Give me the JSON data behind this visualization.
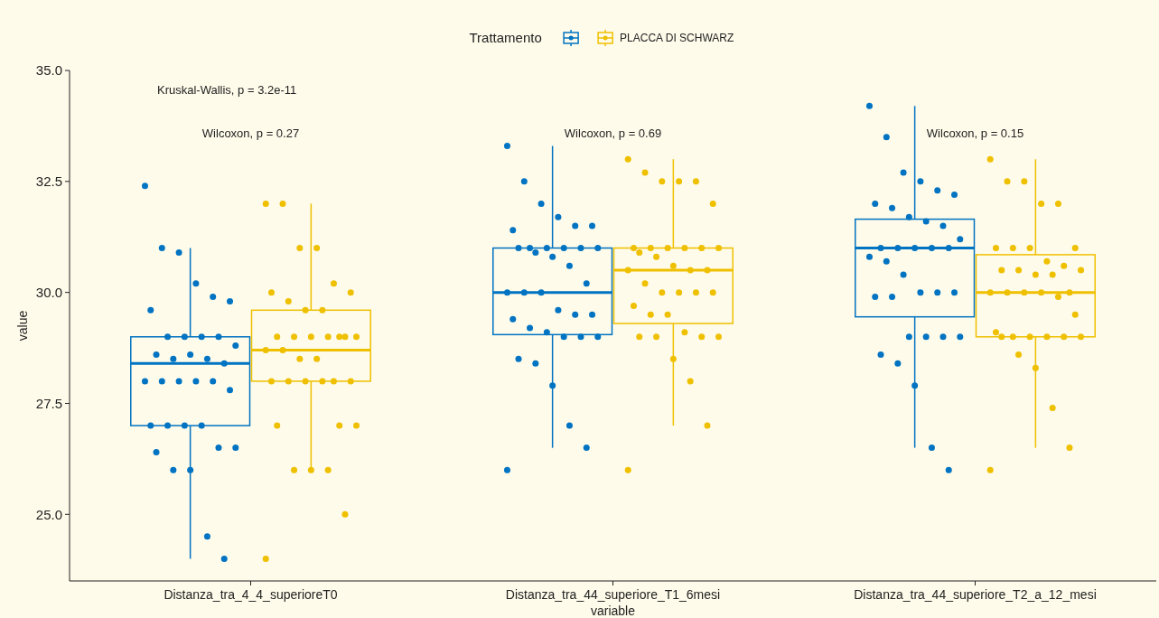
{
  "chart_data": {
    "type": "box",
    "categories": [
      "Distanza_tra_4_4_superioreT0",
      "Distanza_tra_44_superiore_T1_6mesi",
      "Distanza_tra_44_superiore_T2_a_12_mesi"
    ],
    "xlabel": "variable",
    "ylabel": "value",
    "legend_title": "Trattamento",
    "legend": "top",
    "ylim": [
      23.5,
      35
    ],
    "yticks": [
      {
        "value": 25,
        "label": "25.0"
      },
      {
        "value": 27.5,
        "label": "27.5"
      },
      {
        "value": 30,
        "label": "30.0"
      },
      {
        "value": 32.5,
        "label": "32.5"
      },
      {
        "value": 35,
        "label": "35.0"
      }
    ],
    "annotations": [
      "Kruskal-Wallis, p = 3.2e-11",
      "Wilcoxon, p = 0.27",
      "Wilcoxon, p = 0.69",
      "Wilcoxon, p = 0.15"
    ],
    "series": [
      {
        "color": "#0073c2",
        "boxes": [
          {
            "low": 24.0,
            "q1": 27.0,
            "median": 28.4,
            "q3": 29.0,
            "high": 31.0
          },
          {
            "low": 26.5,
            "q1": 29.05,
            "median": 30.0,
            "q3": 31.0,
            "high": 33.3
          },
          {
            "low": 26.5,
            "q1": 29.45,
            "median": 31.0,
            "q3": 31.65,
            "high": 34.2
          }
        ]
      },
      {
        "name": "PLACCA DI SCHWARZ",
        "color": "#efc000",
        "boxes": [
          {
            "low": 26.0,
            "q1": 28.0,
            "median": 28.7,
            "q3": 29.6,
            "high": 32.0
          },
          {
            "low": 27.0,
            "q1": 29.3,
            "median": 30.5,
            "q3": 31.0,
            "high": 33.0
          },
          {
            "low": 26.5,
            "q1": 29.0,
            "median": 30.0,
            "q3": 30.85,
            "high": 33.0
          }
        ]
      },
      {
        "type": "scatter",
        "color": "#0073c2",
        "x": [
          "Distanza_tra_4_4_superioreT0",
          "Distanza_tra_4_4_superioreT0",
          "Distanza_tra_4_4_superioreT0",
          "Distanza_tra_4_4_superioreT0",
          "Distanza_tra_4_4_superioreT0",
          "Distanza_tra_4_4_superioreT0",
          "Distanza_tra_4_4_superioreT0",
          "Distanza_tra_4_4_superioreT0",
          "Distanza_tra_4_4_superioreT0",
          "Distanza_tra_4_4_superioreT0",
          "Distanza_tra_4_4_superioreT0",
          "Distanza_tra_4_4_superioreT0",
          "Distanza_tra_4_4_superioreT0",
          "Distanza_tra_4_4_superioreT0",
          "Distanza_tra_4_4_superioreT0",
          "Distanza_tra_4_4_superioreT0",
          "Distanza_tra_4_4_superioreT0",
          "Distanza_tra_4_4_superioreT0",
          "Distanza_tra_4_4_superioreT0",
          "Distanza_tra_4_4_superioreT0",
          "Distanza_tra_4_4_superioreT0",
          "Distanza_tra_4_4_superioreT0",
          "Distanza_tra_4_4_superioreT0",
          "Distanza_tra_4_4_superioreT0",
          "Distanza_tra_4_4_superioreT0",
          "Distanza_tra_4_4_superioreT0",
          "Distanza_tra_4_4_superioreT0",
          "Distanza_tra_4_4_superioreT0",
          "Distanza_tra_4_4_superioreT0",
          "Distanza_tra_4_4_superioreT0",
          "Distanza_tra_4_4_superioreT0",
          "Distanza_tra_4_4_superioreT0",
          "Distanza_tra_4_4_superioreT0",
          "Distanza_tra_4_4_superioreT0"
        ],
        "values": [
          32.4,
          31.0,
          30.9,
          30.2,
          29.9,
          29.8,
          29.6,
          29.0,
          29.0,
          29.0,
          29.0,
          28.8,
          28.6,
          28.5,
          28.6,
          28.5,
          28.4,
          28.0,
          28.0,
          28.0,
          28.0,
          28.0,
          27.8,
          27.0,
          27.0,
          27.0,
          27.0,
          26.5,
          26.5,
          26.4,
          26.0,
          26.0,
          24.5,
          24.0
        ]
      },
      {
        "type": "scatter",
        "color": "#0073c2",
        "x": [
          "Distanza_tra_44_superiore_T1_6mesi",
          "Distanza_tra_44_superiore_T1_6mesi",
          "Distanza_tra_44_superiore_T1_6mesi",
          "Distanza_tra_44_superiore_T1_6mesi",
          "Distanza_tra_44_superiore_T1_6mesi",
          "Distanza_tra_44_superiore_T1_6mesi",
          "Distanza_tra_44_superiore_T1_6mesi",
          "Distanza_tra_44_superiore_T1_6mesi",
          "Distanza_tra_44_superiore_T1_6mesi",
          "Distanza_tra_44_superiore_T1_6mesi",
          "Distanza_tra_44_superiore_T1_6mesi",
          "Distanza_tra_44_superiore_T1_6mesi",
          "Distanza_tra_44_superiore_T1_6mesi",
          "Distanza_tra_44_superiore_T1_6mesi",
          "Distanza_tra_44_superiore_T1_6mesi",
          "Distanza_tra_44_superiore_T1_6mesi",
          "Distanza_tra_44_superiore_T1_6mesi",
          "Distanza_tra_44_superiore_T1_6mesi",
          "Distanza_tra_44_superiore_T1_6mesi",
          "Distanza_tra_44_superiore_T1_6mesi",
          "Distanza_tra_44_superiore_T1_6mesi",
          "Distanza_tra_44_superiore_T1_6mesi",
          "Distanza_tra_44_superiore_T1_6mesi",
          "Distanza_tra_44_superiore_T1_6mesi",
          "Distanza_tra_44_superiore_T1_6mesi",
          "Distanza_tra_44_superiore_T1_6mesi",
          "Distanza_tra_44_superiore_T1_6mesi",
          "Distanza_tra_44_superiore_T1_6mesi",
          "Distanza_tra_44_superiore_T1_6mesi",
          "Distanza_tra_44_superiore_T1_6mesi",
          "Distanza_tra_44_superiore_T1_6mesi",
          "Distanza_tra_44_superiore_T1_6mesi",
          "Distanza_tra_44_superiore_T1_6mesi",
          "Distanza_tra_44_superiore_T1_6mesi",
          "Distanza_tra_44_superiore_T1_6mesi"
        ],
        "values": [
          33.3,
          32.5,
          32.0,
          31.7,
          31.5,
          31.5,
          31.4,
          31.0,
          31.0,
          31.0,
          31.0,
          31.0,
          31.0,
          30.9,
          30.8,
          30.6,
          30.2,
          30.0,
          30.0,
          30.0,
          29.6,
          29.5,
          29.5,
          29.4,
          29.2,
          29.1,
          29.0,
          29.0,
          29.0,
          28.5,
          28.4,
          27.9,
          27.0,
          26.5,
          26.0
        ]
      },
      {
        "type": "scatter",
        "color": "#0073c2",
        "x": [
          "Distanza_tra_44_superiore_T2_a_12_mesi",
          "Distanza_tra_44_superiore_T2_a_12_mesi",
          "Distanza_tra_44_superiore_T2_a_12_mesi",
          "Distanza_tra_44_superiore_T2_a_12_mesi",
          "Distanza_tra_44_superiore_T2_a_12_mesi",
          "Distanza_tra_44_superiore_T2_a_12_mesi",
          "Distanza_tra_44_superiore_T2_a_12_mesi",
          "Distanza_tra_44_superiore_T2_a_12_mesi",
          "Distanza_tra_44_superiore_T2_a_12_mesi",
          "Distanza_tra_44_superiore_T2_a_12_mesi",
          "Distanza_tra_44_superiore_T2_a_12_mesi",
          "Distanza_tra_44_superiore_T2_a_12_mesi",
          "Distanza_tra_44_superiore_T2_a_12_mesi",
          "Distanza_tra_44_superiore_T2_a_12_mesi",
          "Distanza_tra_44_superiore_T2_a_12_mesi",
          "Distanza_tra_44_superiore_T2_a_12_mesi",
          "Distanza_tra_44_superiore_T2_a_12_mesi",
          "Distanza_tra_44_superiore_T2_a_12_mesi",
          "Distanza_tra_44_superiore_T2_a_12_mesi",
          "Distanza_tra_44_superiore_T2_a_12_mesi",
          "Distanza_tra_44_superiore_T2_a_12_mesi",
          "Distanza_tra_44_superiore_T2_a_12_mesi",
          "Distanza_tra_44_superiore_T2_a_12_mesi",
          "Distanza_tra_44_superiore_T2_a_12_mesi",
          "Distanza_tra_44_superiore_T2_a_12_mesi",
          "Distanza_tra_44_superiore_T2_a_12_mesi",
          "Distanza_tra_44_superiore_T2_a_12_mesi",
          "Distanza_tra_44_superiore_T2_a_12_mesi",
          "Distanza_tra_44_superiore_T2_a_12_mesi",
          "Distanza_tra_44_superiore_T2_a_12_mesi",
          "Distanza_tra_44_superiore_T2_a_12_mesi",
          "Distanza_tra_44_superiore_T2_a_12_mesi",
          "Distanza_tra_44_superiore_T2_a_12_mesi",
          "Distanza_tra_44_superiore_T2_a_12_mesi"
        ],
        "values": [
          34.2,
          33.5,
          32.7,
          32.5,
          32.3,
          32.2,
          32.0,
          31.9,
          31.7,
          31.6,
          31.5,
          31.2,
          31.0,
          31.0,
          31.0,
          31.0,
          31.0,
          30.8,
          30.7,
          30.4,
          30.0,
          30.0,
          30.0,
          29.9,
          29.9,
          29.0,
          29.0,
          29.0,
          29.0,
          28.6,
          28.4,
          27.9,
          26.5,
          26.0
        ]
      },
      {
        "type": "scatter",
        "color": "#efc000",
        "x": [
          "Distanza_tra_4_4_superioreT0",
          "Distanza_tra_4_4_superioreT0",
          "Distanza_tra_4_4_superioreT0",
          "Distanza_tra_4_4_superioreT0",
          "Distanza_tra_4_4_superioreT0",
          "Distanza_tra_4_4_superioreT0",
          "Distanza_tra_4_4_superioreT0",
          "Distanza_tra_4_4_superioreT0",
          "Distanza_tra_4_4_superioreT0",
          "Distanza_tra_4_4_superioreT0",
          "Distanza_tra_4_4_superioreT0",
          "Distanza_tra_4_4_superioreT0",
          "Distanza_tra_4_4_superioreT0",
          "Distanza_tra_4_4_superioreT0",
          "Distanza_tra_4_4_superioreT0",
          "Distanza_tra_4_4_superioreT0",
          "Distanza_tra_4_4_superioreT0",
          "Distanza_tra_4_4_superioreT0",
          "Distanza_tra_4_4_superioreT0",
          "Distanza_tra_4_4_superioreT0",
          "Distanza_tra_4_4_superioreT0",
          "Distanza_tra_4_4_superioreT0",
          "Distanza_tra_4_4_superioreT0",
          "Distanza_tra_4_4_superioreT0",
          "Distanza_tra_4_4_superioreT0",
          "Distanza_tra_4_4_superioreT0",
          "Distanza_tra_4_4_superioreT0",
          "Distanza_tra_4_4_superioreT0",
          "Distanza_tra_4_4_superioreT0",
          "Distanza_tra_4_4_superioreT0",
          "Distanza_tra_4_4_superioreT0",
          "Distanza_tra_4_4_superioreT0",
          "Distanza_tra_4_4_superioreT0",
          "Distanza_tra_4_4_superioreT0",
          "Distanza_tra_4_4_superioreT0"
        ],
        "values": [
          32.0,
          32.0,
          31.0,
          31.0,
          30.2,
          30.0,
          30.0,
          29.8,
          29.6,
          29.6,
          29.0,
          29.0,
          29.0,
          29.0,
          29.0,
          29.0,
          29.0,
          28.7,
          28.7,
          28.5,
          28.5,
          28.0,
          28.0,
          28.0,
          28.0,
          28.0,
          28.0,
          27.0,
          27.0,
          27.0,
          26.0,
          26.0,
          26.0,
          25.0,
          24.0
        ]
      },
      {
        "type": "scatter",
        "color": "#efc000",
        "x": [
          "Distanza_tra_44_superiore_T1_6mesi",
          "Distanza_tra_44_superiore_T1_6mesi",
          "Distanza_tra_44_superiore_T1_6mesi",
          "Distanza_tra_44_superiore_T1_6mesi",
          "Distanza_tra_44_superiore_T1_6mesi",
          "Distanza_tra_44_superiore_T1_6mesi",
          "Distanza_tra_44_superiore_T1_6mesi",
          "Distanza_tra_44_superiore_T1_6mesi",
          "Distanza_tra_44_superiore_T1_6mesi",
          "Distanza_tra_44_superiore_T1_6mesi",
          "Distanza_tra_44_superiore_T1_6mesi",
          "Distanza_tra_44_superiore_T1_6mesi",
          "Distanza_tra_44_superiore_T1_6mesi",
          "Distanza_tra_44_superiore_T1_6mesi",
          "Distanza_tra_44_superiore_T1_6mesi",
          "Distanza_tra_44_superiore_T1_6mesi",
          "Distanza_tra_44_superiore_T1_6mesi",
          "Distanza_tra_44_superiore_T1_6mesi",
          "Distanza_tra_44_superiore_T1_6mesi",
          "Distanza_tra_44_superiore_T1_6mesi",
          "Distanza_tra_44_superiore_T1_6mesi",
          "Distanza_tra_44_superiore_T1_6mesi",
          "Distanza_tra_44_superiore_T1_6mesi",
          "Distanza_tra_44_superiore_T1_6mesi",
          "Distanza_tra_44_superiore_T1_6mesi",
          "Distanza_tra_44_superiore_T1_6mesi",
          "Distanza_tra_44_superiore_T1_6mesi",
          "Distanza_tra_44_superiore_T1_6mesi",
          "Distanza_tra_44_superiore_T1_6mesi",
          "Distanza_tra_44_superiore_T1_6mesi",
          "Distanza_tra_44_superiore_T1_6mesi",
          "Distanza_tra_44_superiore_T1_6mesi",
          "Distanza_tra_44_superiore_T1_6mesi",
          "Distanza_tra_44_superiore_T1_6mesi",
          "Distanza_tra_44_superiore_T1_6mesi"
        ],
        "values": [
          33.0,
          32.7,
          32.5,
          32.5,
          32.5,
          32.0,
          31.0,
          31.0,
          31.0,
          31.0,
          31.0,
          31.0,
          30.9,
          30.8,
          30.6,
          30.5,
          30.5,
          30.5,
          30.2,
          30.0,
          30.0,
          30.0,
          30.0,
          29.7,
          29.5,
          29.5,
          29.1,
          29.0,
          29.0,
          29.0,
          29.0,
          28.5,
          28.0,
          27.0,
          26.0
        ]
      },
      {
        "type": "scatter",
        "color": "#efc000",
        "x": [
          "Distanza_tra_44_superiore_T2_a_12_mesi",
          "Distanza_tra_44_superiore_T2_a_12_mesi",
          "Distanza_tra_44_superiore_T2_a_12_mesi",
          "Distanza_tra_44_superiore_T2_a_12_mesi",
          "Distanza_tra_44_superiore_T2_a_12_mesi",
          "Distanza_tra_44_superiore_T2_a_12_mesi",
          "Distanza_tra_44_superiore_T2_a_12_mesi",
          "Distanza_tra_44_superiore_T2_a_12_mesi",
          "Distanza_tra_44_superiore_T2_a_12_mesi",
          "Distanza_tra_44_superiore_T2_a_12_mesi",
          "Distanza_tra_44_superiore_T2_a_12_mesi",
          "Distanza_tra_44_superiore_T2_a_12_mesi",
          "Distanza_tra_44_superiore_T2_a_12_mesi",
          "Distanza_tra_44_superiore_T2_a_12_mesi",
          "Distanza_tra_44_superiore_T2_a_12_mesi",
          "Distanza_tra_44_superiore_T2_a_12_mesi",
          "Distanza_tra_44_superiore_T2_a_12_mesi",
          "Distanza_tra_44_superiore_T2_a_12_mesi",
          "Distanza_tra_44_superiore_T2_a_12_mesi",
          "Distanza_tra_44_superiore_T2_a_12_mesi",
          "Distanza_tra_44_superiore_T2_a_12_mesi",
          "Distanza_tra_44_superiore_T2_a_12_mesi",
          "Distanza_tra_44_superiore_T2_a_12_mesi",
          "Distanza_tra_44_superiore_T2_a_12_mesi",
          "Distanza_tra_44_superiore_T2_a_12_mesi",
          "Distanza_tra_44_superiore_T2_a_12_mesi",
          "Distanza_tra_44_superiore_T2_a_12_mesi",
          "Distanza_tra_44_superiore_T2_a_12_mesi",
          "Distanza_tra_44_superiore_T2_a_12_mesi",
          "Distanza_tra_44_superiore_T2_a_12_mesi",
          "Distanza_tra_44_superiore_T2_a_12_mesi",
          "Distanza_tra_44_superiore_T2_a_12_mesi",
          "Distanza_tra_44_superiore_T2_a_12_mesi",
          "Distanza_tra_44_superiore_T2_a_12_mesi",
          "Distanza_tra_44_superiore_T2_a_12_mesi"
        ],
        "values": [
          33.0,
          32.5,
          32.5,
          32.0,
          32.0,
          31.0,
          31.0,
          31.0,
          31.0,
          30.7,
          30.6,
          30.5,
          30.5,
          30.5,
          30.4,
          30.4,
          30.0,
          30.0,
          30.0,
          30.0,
          30.0,
          29.9,
          29.5,
          29.1,
          29.0,
          29.0,
          29.0,
          29.0,
          29.0,
          29.0,
          28.6,
          28.3,
          27.4,
          26.5,
          26.0
        ]
      }
    ]
  }
}
